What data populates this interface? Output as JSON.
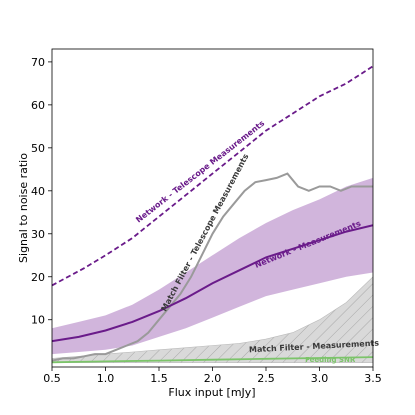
{
  "chart_data": {
    "type": "line",
    "xlabel": "Flux input [mJy]",
    "ylabel": "Signal to noise ratio",
    "xlim": [
      0.5,
      3.5
    ],
    "ylim": [
      -1,
      73
    ],
    "xticks": [
      0.5,
      1.0,
      1.5,
      2.0,
      2.5,
      3.0,
      3.5
    ],
    "xtick_labels": [
      "0.5",
      "1.0",
      "1.5",
      "2.0",
      "2.5",
      "3.0",
      "3.5"
    ],
    "yticks": [
      10,
      20,
      30,
      40,
      50,
      60,
      70
    ],
    "ytick_labels": [
      "10",
      "20",
      "30",
      "40",
      "50",
      "60",
      "70"
    ],
    "grid": false,
    "colors": {
      "purple": "#6a1b8a",
      "purple_band": "#c9a8d6",
      "gray_line": "#9a9a9a",
      "gray_band": "#d9d9d9",
      "green": "#7cc46a",
      "label_dark": "#3a3a3a"
    },
    "series": [
      {
        "name": "Network - Telescope Measurements",
        "style": "dashed",
        "x": [
          0.5,
          0.8,
          1.0,
          1.25,
          1.5,
          1.75,
          2.0,
          2.25,
          2.5,
          2.75,
          3.0,
          3.25,
          3.5
        ],
        "y": [
          18,
          22,
          25,
          29,
          34,
          39,
          44,
          49,
          54,
          58,
          62,
          65,
          69
        ]
      },
      {
        "name": "Network - Measurements",
        "style": "solid",
        "x": [
          0.5,
          0.75,
          1.0,
          1.25,
          1.5,
          1.75,
          2.0,
          2.25,
          2.5,
          2.75,
          3.0,
          3.25,
          3.5
        ],
        "y": [
          5,
          6,
          7.5,
          9.5,
          12,
          15,
          18.5,
          21.5,
          24.5,
          26.5,
          28.5,
          30.5,
          32
        ],
        "band_lower": [
          2,
          2.5,
          3,
          4,
          6,
          8,
          10.5,
          13,
          15.5,
          17,
          18.5,
          20,
          21
        ],
        "band_upper": [
          8,
          9.5,
          11,
          13.5,
          17,
          21,
          25,
          29,
          32.5,
          35.5,
          38,
          41,
          43
        ]
      },
      {
        "name": "Match Filter - Telescope Measurements",
        "style": "solid",
        "x": [
          0.5,
          0.6,
          0.7,
          0.8,
          0.9,
          1.0,
          1.1,
          1.2,
          1.3,
          1.4,
          1.5,
          1.6,
          1.7,
          1.8,
          1.9,
          2.0,
          2.1,
          2.2,
          2.3,
          2.4,
          2.5,
          2.6,
          2.7,
          2.8,
          2.9,
          3.0,
          3.1,
          3.2,
          3.3,
          3.4,
          3.5
        ],
        "y": [
          0.5,
          1,
          1,
          1.5,
          2,
          2,
          3,
          4,
          5,
          7,
          10,
          13,
          16,
          20,
          25,
          30,
          34,
          37,
          40,
          42,
          42.5,
          43,
          44,
          41,
          40,
          41,
          41,
          40,
          41,
          41,
          41
        ]
      },
      {
        "name": "Match Filter - Measurements",
        "style": "band",
        "x": [
          0.5,
          0.75,
          1.0,
          1.25,
          1.5,
          1.75,
          2.0,
          2.25,
          2.5,
          2.75,
          3.0,
          3.25,
          3.5
        ],
        "band_lower": [
          0,
          0,
          0,
          0,
          0,
          0,
          0,
          0,
          0,
          0,
          0,
          0,
          0
        ],
        "band_upper": [
          1,
          1.5,
          2,
          2.5,
          3,
          3.5,
          4,
          4.5,
          5.5,
          7,
          10,
          14,
          20
        ]
      },
      {
        "name": "Feeding SNR",
        "style": "solid",
        "x": [
          0.5,
          1.0,
          1.5,
          2.0,
          2.5,
          3.0,
          3.5
        ],
        "y": [
          0.1,
          0.3,
          0.5,
          0.7,
          0.9,
          1.1,
          1.3
        ]
      }
    ],
    "annotations": [
      {
        "text": "Network - Telescope Measurements",
        "x": 1.9,
        "y": 44,
        "angle": -38,
        "color": "#6a1b8a",
        "size": 8
      },
      {
        "text": "Network - Measurements",
        "x": 2.9,
        "y": 27,
        "angle": -22,
        "color": "#6a1b8a",
        "size": 8
      },
      {
        "text": "Match Filter - Telescope Measurements",
        "x": 1.95,
        "y": 30,
        "angle": -62,
        "color": "#3a3a3a",
        "size": 8
      },
      {
        "text": "Match Filter - Measurements",
        "x": 2.95,
        "y": 3.2,
        "angle": -3,
        "color": "#3a3a3a",
        "size": 8
      },
      {
        "text": "Feeding SNR",
        "x": 3.1,
        "y": 0.2,
        "angle": 0,
        "color": "#7cc46a",
        "size": 7
      }
    ]
  }
}
